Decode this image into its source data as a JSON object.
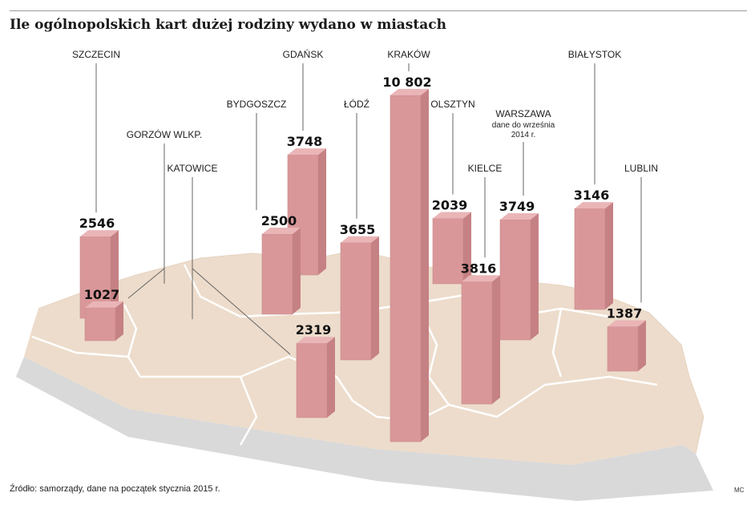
{
  "title": "Ile ogólnopolskich kart dużej rodziny wydano w miastach",
  "source": "Źródło: samorządy, dane na początek stycznia 2015 r.",
  "author": "MC",
  "colors": {
    "bar_front": "#d99799",
    "bar_side": "#c58184",
    "bar_top": "#eab5b7",
    "map": "#eddccb",
    "map_edge": "#d6d6d6",
    "border": "#ffffff"
  },
  "chart_data": {
    "type": "bar",
    "categories": [
      "Szczecin",
      "Gorzów Wlkp.",
      "Katowice",
      "Bydgoszcz",
      "Gdańsk",
      "Łódź",
      "Kraków",
      "Olsztyn",
      "Kielce",
      "Warszawa",
      "Białystok",
      "Lublin"
    ],
    "labels": [
      "SZCZECIN",
      "GORZÓW WLKP.",
      "KATOWICE",
      "BYDGOSZCZ",
      "GDAŃSK",
      "ŁÓDŹ",
      "KRAKÓW",
      "OLSZTYN",
      "KIELCE",
      "WARSZAWA",
      "BIAŁYSTOK",
      "LUBLIN"
    ],
    "values": [
      2546,
      1027,
      2319,
      2500,
      3748,
      3655,
      10802,
      2039,
      3816,
      3749,
      3146,
      1387
    ],
    "value_labels": [
      "2546",
      "1027",
      "2319",
      "2500",
      "3748",
      "3655",
      "10 802",
      "2039",
      "3816",
      "3749",
      "3146",
      "1387"
    ],
    "notes": [
      "",
      "",
      "",
      "",
      "",
      "",
      "",
      "",
      "",
      "dane do września 2014 r.",
      "",
      ""
    ]
  }
}
